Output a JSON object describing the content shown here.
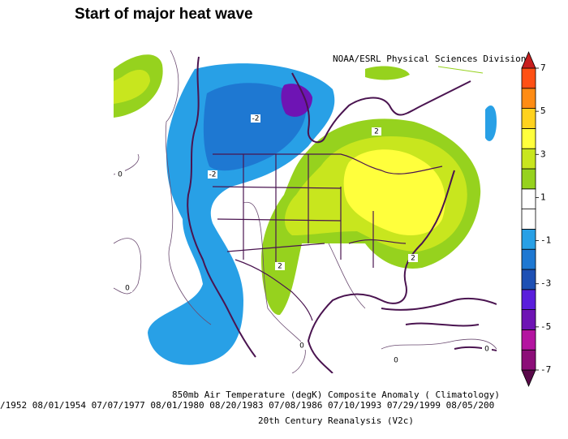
{
  "header": {
    "title": "Start of major heat wave"
  },
  "map": {
    "credit": "NOAA/ESRL Physical Sciences Division",
    "contour_labels": [
      "-2",
      "-2",
      "2",
      "2",
      "2",
      "0",
      "0",
      "0",
      "0",
      "0"
    ]
  },
  "colorbar": {
    "lim": [
      -7,
      7
    ],
    "ticks": [
      7,
      5,
      3,
      1,
      -1,
      -3,
      -5,
      -7
    ],
    "colors": [
      "#5a0a4a",
      "#8c0e78",
      "#b414a0",
      "#6e14b4",
      "#5a1edc",
      "#1e50b4",
      "#1e78d2",
      "#28a0e6",
      "#ffffff",
      "#ffffff",
      "#96d21e",
      "#c8e61e",
      "#ffff3c",
      "#ffd21e",
      "#ff8c14",
      "#ff5014",
      "#c81e1e"
    ]
  },
  "footer": {
    "line1": "850mb Air Temperature (degK) Composite Anomaly ( Climatology)",
    "line2": "/1952 08/01/1954 07/07/1977 08/01/1980 08/20/1983 07/08/1986 07/10/1993 07/29/1999 08/05/200",
    "line3": "20th Century Reanalysis (V2c)"
  }
}
